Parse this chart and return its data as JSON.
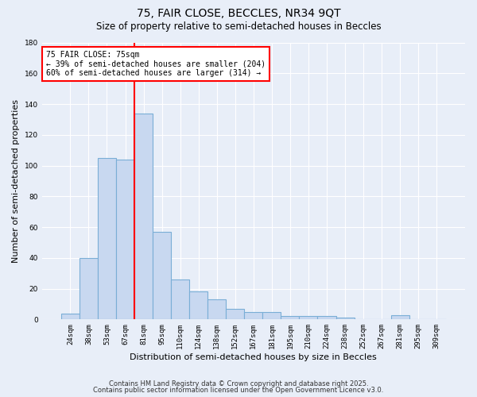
{
  "title1": "75, FAIR CLOSE, BECCLES, NR34 9QT",
  "title2": "Size of property relative to semi-detached houses in Beccles",
  "xlabel": "Distribution of semi-detached houses by size in Beccles",
  "ylabel": "Number of semi-detached properties",
  "bin_labels": [
    "24sqm",
    "38sqm",
    "53sqm",
    "67sqm",
    "81sqm",
    "95sqm",
    "110sqm",
    "124sqm",
    "138sqm",
    "152sqm",
    "167sqm",
    "181sqm",
    "195sqm",
    "210sqm",
    "224sqm",
    "238sqm",
    "252sqm",
    "267sqm",
    "281sqm",
    "295sqm",
    "309sqm"
  ],
  "bin_values": [
    4,
    40,
    105,
    104,
    134,
    57,
    26,
    18,
    13,
    7,
    5,
    5,
    2,
    2,
    2,
    1,
    0,
    0,
    3,
    0,
    0
  ],
  "bar_color": "#c8d8f0",
  "bar_edge_color": "#7aaed6",
  "ylim": [
    0,
    180
  ],
  "yticks": [
    0,
    20,
    40,
    60,
    80,
    100,
    120,
    140,
    160,
    180
  ],
  "annotation_title": "75 FAIR CLOSE: 75sqm",
  "annotation_line1": "← 39% of semi-detached houses are smaller (204)",
  "annotation_line2": "60% of semi-detached houses are larger (314) →",
  "red_line_bin": 4,
  "footer1": "Contains HM Land Registry data © Crown copyright and database right 2025.",
  "footer2": "Contains public sector information licensed under the Open Government Licence v3.0.",
  "background_color": "#e8eef8",
  "grid_color": "#ffffff",
  "title_fontsize": 10,
  "subtitle_fontsize": 8.5,
  "axis_label_fontsize": 8,
  "tick_fontsize": 6.5,
  "annotation_fontsize": 7,
  "footer_fontsize": 6
}
